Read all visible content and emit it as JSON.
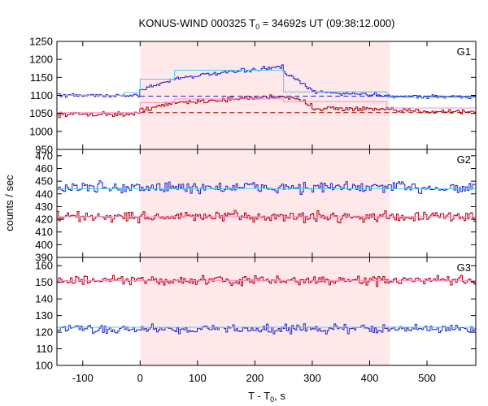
{
  "chart_data": {
    "type": "line",
    "title_prefix": "KONUS-WIND 000325 T",
    "title_sub": "0",
    "title_suffix": " = 34692s UT (09:38:12.000)",
    "xlabel_prefix": "T - T",
    "xlabel_sub": "0",
    "xlabel_suffix": ", s",
    "ylabel": "counts / sec",
    "xlim": [
      -145,
      585
    ],
    "xticks": [
      -100,
      0,
      100,
      200,
      300,
      400,
      500
    ],
    "bin_width": 2.944,
    "highlight_interval": [
      0,
      435
    ],
    "colors": {
      "counts_red": "#aa0000",
      "counts_blue": "#2222cc",
      "fit_cyan": "#55ccee",
      "fit_pink": "#ff88cc",
      "background_dashed_red": "#aa0000",
      "background_dashed_blue": "#2222cc",
      "highlight": "#ffe8ea"
    },
    "panels": [
      {
        "name": "G1",
        "ylim": [
          950,
          1250
        ],
        "yticks": [
          950,
          1000,
          1050,
          1100,
          1150,
          1200,
          1250
        ],
        "series": [
          {
            "color": "red",
            "background": 1052,
            "segments": [
              [
                -145,
                0,
                1048,
                1048
              ],
              [
                0,
                60,
                1060,
                1078
              ],
              [
                60,
                250,
                1080,
                1098
              ],
              [
                250,
                300,
                1098,
                1075
              ],
              [
                300,
                435,
                1065,
                1060
              ],
              [
                435,
                585,
                1058,
                1055
              ]
            ],
            "noise": 10
          },
          {
            "color": "blue",
            "background": 1098,
            "segments": [
              [
                -145,
                0,
                1100,
                1100
              ],
              [
                0,
                60,
                1115,
                1145
              ],
              [
                60,
                250,
                1148,
                1180
              ],
              [
                250,
                300,
                1165,
                1115
              ],
              [
                300,
                435,
                1110,
                1100
              ],
              [
                435,
                585,
                1098,
                1095
              ]
            ],
            "noise": 8
          }
        ],
        "fits": [
          {
            "color": "cyan",
            "steps": [
              [
                -145,
                -28,
                1100
              ],
              [
                -28,
                0,
                1108
              ],
              [
                0,
                60,
                1145
              ],
              [
                60,
                250,
                1170
              ],
              [
                250,
                300,
                1110
              ],
              [
                300,
                430,
                1110
              ],
              [
                430,
                585,
                1095
              ]
            ]
          },
          {
            "color": "pink",
            "steps": [
              [
                -145,
                0,
                1052
              ],
              [
                0,
                60,
                1080
              ],
              [
                60,
                250,
                1090
              ],
              [
                250,
                430,
                1083
              ],
              [
                430,
                585,
                1065
              ]
            ]
          }
        ]
      },
      {
        "name": "G2",
        "ylim": [
          390,
          475
        ],
        "yticks": [
          390,
          400,
          410,
          420,
          430,
          440,
          450,
          460,
          470
        ],
        "series": [
          {
            "color": "red",
            "background": null,
            "segments": [
              [
                -145,
                585,
                422,
                422
              ]
            ],
            "noise": 6
          },
          {
            "color": "blue",
            "background": null,
            "segments": [
              [
                -145,
                585,
                445,
                445
              ]
            ],
            "noise": 7
          }
        ],
        "fits": [
          {
            "color": "cyan",
            "steps": [
              [
                -145,
                585,
                444
              ]
            ]
          },
          {
            "color": "pink",
            "steps": [
              [
                -145,
                585,
                422
              ]
            ]
          }
        ]
      },
      {
        "name": "G3",
        "ylim": [
          100,
          165
        ],
        "yticks": [
          100,
          110,
          120,
          130,
          140,
          150,
          160
        ],
        "series": [
          {
            "color": "red",
            "background": null,
            "segments": [
              [
                -145,
                585,
                151,
                151
              ]
            ],
            "noise": 4
          },
          {
            "color": "blue",
            "background": null,
            "segments": [
              [
                -145,
                585,
                122,
                122
              ]
            ],
            "noise": 4
          }
        ],
        "fits": [
          {
            "color": "cyan",
            "steps": [
              [
                -145,
                585,
                123
              ]
            ]
          },
          {
            "color": "pink",
            "steps": [
              [
                -145,
                585,
                151
              ]
            ]
          }
        ]
      }
    ]
  }
}
